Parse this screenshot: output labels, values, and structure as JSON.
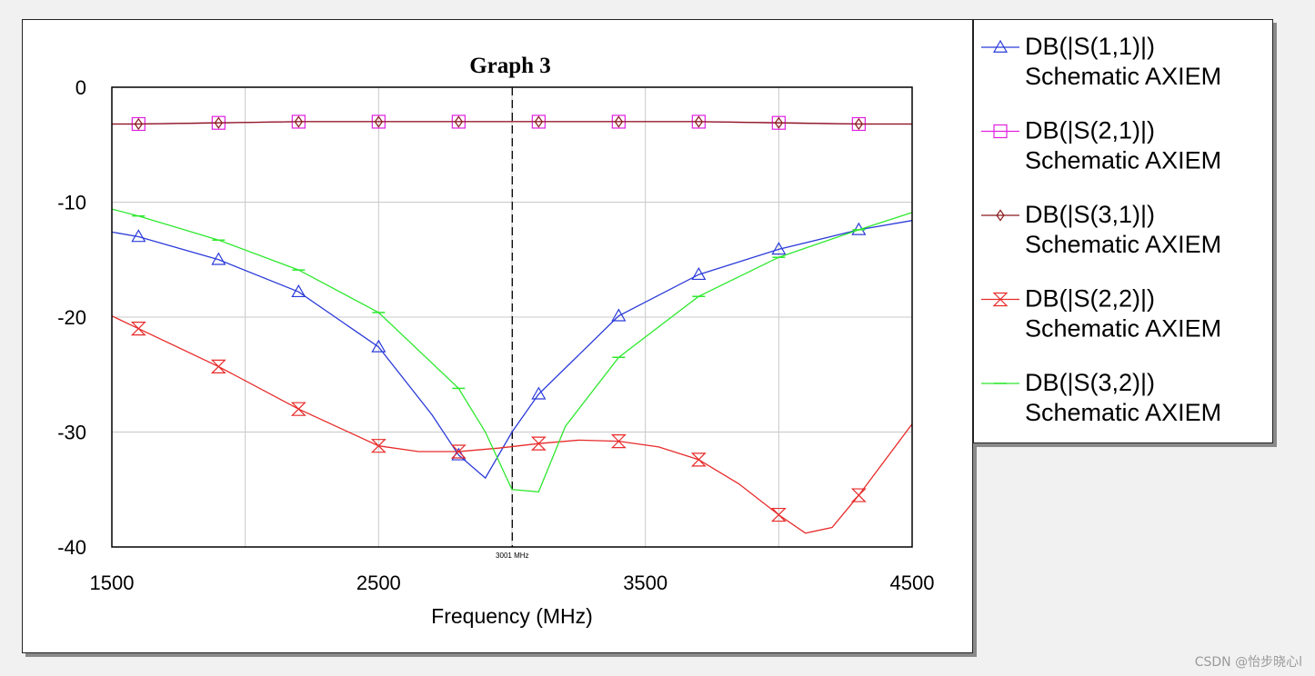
{
  "chart_data": {
    "type": "line",
    "title": "Graph 3",
    "xlabel": "Frequency (MHz)",
    "ylabel": "",
    "xlim": [
      1500,
      4500
    ],
    "ylim": [
      -40,
      0
    ],
    "x_ticks": [
      1500,
      2500,
      3500,
      4500
    ],
    "y_ticks": [
      0,
      -10,
      -20,
      -30,
      -40
    ],
    "grid": true,
    "marker_line": {
      "x": 3001,
      "label": "3001 MHz"
    },
    "legend_position": "right-outside",
    "series": [
      {
        "name": "DB(|S(1,1)|)",
        "source": "Schematic AXIEM",
        "color": "#2b3bd9",
        "marker": "triangle",
        "x": [
          1500,
          1600,
          1900,
          2200,
          2500,
          2700,
          2800,
          2900,
          3000,
          3100,
          3400,
          3700,
          4000,
          4300,
          4500
        ],
        "y": [
          -12.6,
          -13.0,
          -15.0,
          -17.8,
          -22.6,
          -28.5,
          -32.0,
          -34.0,
          -30.0,
          -26.7,
          -19.9,
          -16.3,
          -14.1,
          -12.4,
          -11.6
        ],
        "marker_x": [
          1600,
          1900,
          2200,
          2500,
          2800,
          3100,
          3400,
          3700,
          4000,
          4300
        ],
        "marker_y": [
          -13.0,
          -15.0,
          -17.8,
          -22.6,
          -32.0,
          -26.7,
          -19.9,
          -16.3,
          -14.1,
          -12.4
        ]
      },
      {
        "name": "DB(|S(2,1)|)",
        "source": "Schematic AXIEM",
        "color": "#e020e0",
        "marker": "square",
        "x": [
          1500,
          1600,
          1900,
          2200,
          2500,
          2800,
          3100,
          3400,
          3700,
          4000,
          4300,
          4500
        ],
        "y": [
          -3.2,
          -3.2,
          -3.1,
          -3.0,
          -3.0,
          -3.0,
          -3.0,
          -3.0,
          -3.0,
          -3.1,
          -3.2,
          -3.2
        ],
        "marker_x": [
          1600,
          1900,
          2200,
          2500,
          2800,
          3100,
          3400,
          3700,
          4000,
          4300
        ],
        "marker_y": [
          -3.2,
          -3.1,
          -3.0,
          -3.0,
          -3.0,
          -3.0,
          -3.0,
          -3.0,
          -3.1,
          -3.2
        ]
      },
      {
        "name": "DB(|S(3,1)|)",
        "source": "Schematic AXIEM",
        "color": "#8b1a1a",
        "marker": "diamond",
        "x": [
          1500,
          1600,
          1900,
          2200,
          2500,
          2800,
          3100,
          3400,
          3700,
          4000,
          4300,
          4500
        ],
        "y": [
          -3.2,
          -3.2,
          -3.1,
          -3.0,
          -3.0,
          -3.0,
          -3.0,
          -3.0,
          -3.0,
          -3.1,
          -3.2,
          -3.2
        ],
        "marker_x": [
          1600,
          1900,
          2200,
          2500,
          2800,
          3100,
          3400,
          3700,
          4000,
          4300
        ],
        "marker_y": [
          -3.2,
          -3.1,
          -3.0,
          -3.0,
          -3.0,
          -3.0,
          -3.0,
          -3.0,
          -3.1,
          -3.2
        ]
      },
      {
        "name": "DB(|S(2,2)|)",
        "source": "Schematic AXIEM",
        "color": "#e82a2a",
        "marker": "hourglass",
        "x": [
          1500,
          1600,
          1900,
          2200,
          2500,
          2650,
          2800,
          2950,
          3100,
          3250,
          3400,
          3550,
          3700,
          3850,
          4000,
          4100,
          4200,
          4300,
          4500
        ],
        "y": [
          -19.9,
          -21.0,
          -24.3,
          -28.0,
          -31.2,
          -31.7,
          -31.7,
          -31.4,
          -31.0,
          -30.7,
          -30.8,
          -31.3,
          -32.4,
          -34.5,
          -37.2,
          -38.8,
          -38.3,
          -35.5,
          -29.3
        ],
        "marker_x": [
          1600,
          1900,
          2200,
          2500,
          2800,
          3100,
          3400,
          3700,
          4000,
          4300
        ],
        "marker_y": [
          -21.0,
          -24.3,
          -28.0,
          -31.2,
          -31.7,
          -31.0,
          -30.8,
          -32.4,
          -37.2,
          -35.5
        ]
      },
      {
        "name": "DB(|S(3,2)|)",
        "source": "Schematic AXIEM",
        "color": "#2ee82e",
        "marker": "dash",
        "x": [
          1500,
          1600,
          1900,
          2200,
          2500,
          2800,
          2900,
          3000,
          3100,
          3200,
          3400,
          3700,
          4000,
          4300,
          4500
        ],
        "y": [
          -10.6,
          -11.2,
          -13.3,
          -15.9,
          -19.6,
          -26.2,
          -30.0,
          -35.0,
          -35.2,
          -29.5,
          -23.5,
          -18.2,
          -14.8,
          -12.4,
          -10.9
        ],
        "marker_x": [
          1600,
          1900,
          2200,
          2500,
          2800,
          3400,
          3700,
          4000,
          4300
        ],
        "marker_y": [
          -11.2,
          -13.3,
          -15.9,
          -19.6,
          -26.2,
          -23.5,
          -18.2,
          -14.8,
          -12.4
        ]
      }
    ]
  },
  "watermark": "CSDN @怡步晓心l"
}
